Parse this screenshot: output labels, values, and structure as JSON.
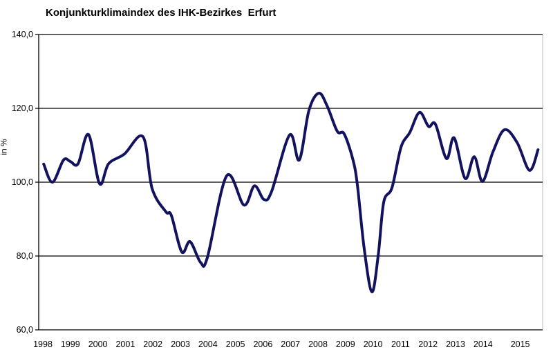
{
  "chart_data": {
    "type": "line",
    "title": "Konjunkturklimaindex des IHK-Bezirkes  Erfurt",
    "xlabel": "",
    "ylabel": "in %",
    "ylim": [
      60,
      140
    ],
    "yticks": [
      "60,0",
      "80,0",
      "100,0",
      "120,0",
      "140,0"
    ],
    "ytick_values": [
      60,
      80,
      100,
      120,
      140
    ],
    "xticks": [
      "1998",
      "1999",
      "2000",
      "2001",
      "2002",
      "2003",
      "2004",
      "2005",
      "2006",
      "2007",
      "2008",
      "2009",
      "2010",
      "2011",
      "2012",
      "2013",
      "2014",
      "2015"
    ],
    "xlim": [
      1998,
      2016.2
    ],
    "grid": true,
    "line_color": "#12125e",
    "series": [
      {
        "x": [
          1998.03,
          1998.35,
          1998.75,
          1999.0,
          1999.28,
          1999.66,
          2000.06,
          2000.39,
          2000.96,
          2001.64,
          2001.97,
          2002.47,
          2002.67,
          2003.05,
          2003.35,
          2003.73,
          2003.98,
          2004.68,
          2005.31,
          2005.69,
          2006.04,
          2006.32,
          2006.97,
          2007.32,
          2007.67,
          2008.03,
          2008.33,
          2008.7,
          2008.95,
          2009.26,
          2009.43,
          2009.68,
          2009.96,
          2010.19,
          2010.39,
          2010.69,
          2011.02,
          2011.34,
          2011.69,
          2012.02,
          2012.27,
          2012.67,
          2012.95,
          2013.35,
          2013.68,
          2013.98,
          2014.36,
          2014.78,
          2015.24,
          2015.69,
          2016.0
        ],
        "y": [
          104.9,
          100.0,
          106.0,
          105.6,
          105.0,
          112.9,
          99.6,
          105.0,
          107.6,
          112.3,
          98.3,
          92.0,
          91.0,
          81.1,
          83.9,
          78.3,
          79.6,
          101.7,
          93.8,
          99.0,
          95.3,
          97.6,
          112.8,
          106.0,
          119.4,
          124.1,
          120.7,
          113.8,
          113.1,
          106.4,
          99.4,
          82.0,
          70.3,
          80.2,
          94.6,
          98.5,
          109.5,
          113.5,
          118.9,
          115.1,
          115.7,
          106.4,
          112.0,
          101.0,
          106.9,
          100.2,
          108.2,
          114.2,
          110.7,
          103.2,
          108.8
        ]
      }
    ]
  }
}
